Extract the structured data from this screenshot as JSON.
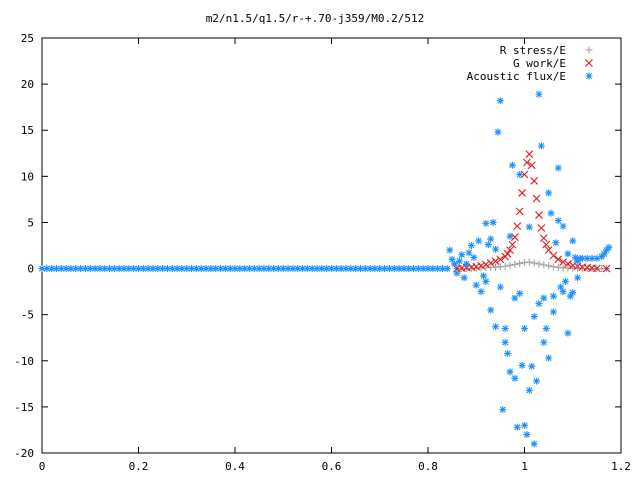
{
  "chart_data": {
    "type": "scatter",
    "title": "m2/n1.5/q1.5/r-+.70-j359/M0.2/512",
    "xlabel": "",
    "ylabel": "",
    "xlim": [
      0,
      1.2
    ],
    "ylim": [
      -20,
      25
    ],
    "xticks": [
      0,
      0.2,
      0.4,
      0.6,
      0.8,
      1,
      1.2
    ],
    "xtick_labels": [
      "0",
      "0.2",
      "0.4",
      "0.6",
      "0.8",
      "1",
      "1.2"
    ],
    "yticks": [
      -20,
      -15,
      -10,
      -5,
      0,
      5,
      10,
      15,
      20,
      25
    ],
    "ytick_labels": [
      "-20",
      "-15",
      "-10",
      "-5",
      "0",
      "5",
      "10",
      "15",
      "20",
      "25"
    ],
    "grid": false,
    "legend_position": "top-right",
    "series": [
      {
        "name": "R stress/E",
        "marker": "plus",
        "color": "#a0a0a0",
        "points": [
          [
            0.86,
            0.0
          ],
          [
            0.87,
            0.0
          ],
          [
            0.88,
            0.0
          ],
          [
            0.89,
            0.02
          ],
          [
            0.9,
            0.05
          ],
          [
            0.91,
            0.08
          ],
          [
            0.92,
            0.1
          ],
          [
            0.93,
            0.12
          ],
          [
            0.94,
            0.15
          ],
          [
            0.95,
            0.2
          ],
          [
            0.96,
            0.25
          ],
          [
            0.97,
            0.35
          ],
          [
            0.98,
            0.45
          ],
          [
            0.99,
            0.55
          ],
          [
            1.0,
            0.65
          ],
          [
            1.01,
            0.7
          ],
          [
            1.02,
            0.6
          ],
          [
            1.03,
            0.5
          ],
          [
            1.04,
            0.4
          ],
          [
            1.05,
            0.3
          ],
          [
            1.06,
            0.2
          ],
          [
            1.07,
            0.12
          ],
          [
            1.08,
            0.08
          ],
          [
            1.09,
            0.05
          ],
          [
            1.1,
            0.03
          ],
          [
            1.11,
            0.02
          ],
          [
            1.12,
            0.01
          ],
          [
            1.13,
            0.0
          ],
          [
            1.14,
            0.0
          ],
          [
            1.15,
            0.0
          ],
          [
            1.16,
            0.0
          ],
          [
            1.17,
            0.0
          ]
        ]
      },
      {
        "name": "G work/E",
        "marker": "cross",
        "color": "#e41a1c",
        "points": [
          [
            0.86,
            0.0
          ],
          [
            0.87,
            0.05
          ],
          [
            0.88,
            0.1
          ],
          [
            0.89,
            0.15
          ],
          [
            0.9,
            0.2
          ],
          [
            0.91,
            0.3
          ],
          [
            0.92,
            0.45
          ],
          [
            0.93,
            0.6
          ],
          [
            0.94,
            0.8
          ],
          [
            0.95,
            1.0
          ],
          [
            0.96,
            1.3
          ],
          [
            0.965,
            1.6
          ],
          [
            0.97,
            2.0
          ],
          [
            0.975,
            2.6
          ],
          [
            0.98,
            3.4
          ],
          [
            0.985,
            4.6
          ],
          [
            0.99,
            6.2
          ],
          [
            0.995,
            8.2
          ],
          [
            1.0,
            10.2
          ],
          [
            1.005,
            11.5
          ],
          [
            1.01,
            12.4
          ],
          [
            1.015,
            11.2
          ],
          [
            1.02,
            9.5
          ],
          [
            1.025,
            7.6
          ],
          [
            1.03,
            5.8
          ],
          [
            1.035,
            4.4
          ],
          [
            1.04,
            3.3
          ],
          [
            1.045,
            2.6
          ],
          [
            1.05,
            2.0
          ],
          [
            1.06,
            1.4
          ],
          [
            1.07,
            1.0
          ],
          [
            1.08,
            0.7
          ],
          [
            1.09,
            0.5
          ],
          [
            1.1,
            0.35
          ],
          [
            1.11,
            0.25
          ],
          [
            1.12,
            0.15
          ],
          [
            1.13,
            0.1
          ],
          [
            1.14,
            0.05
          ],
          [
            1.15,
            0.02
          ],
          [
            1.17,
            0.0
          ]
        ]
      },
      {
        "name": "Acoustic flux/E",
        "marker": "star",
        "color": "#1e90ff",
        "points": [
          [
            0.0,
            0
          ],
          [
            0.01,
            0
          ],
          [
            0.02,
            0
          ],
          [
            0.03,
            0
          ],
          [
            0.04,
            0
          ],
          [
            0.05,
            0
          ],
          [
            0.06,
            0
          ],
          [
            0.07,
            0
          ],
          [
            0.08,
            0
          ],
          [
            0.09,
            0
          ],
          [
            0.1,
            0
          ],
          [
            0.11,
            0
          ],
          [
            0.12,
            0
          ],
          [
            0.13,
            0
          ],
          [
            0.14,
            0
          ],
          [
            0.15,
            0
          ],
          [
            0.16,
            0
          ],
          [
            0.17,
            0
          ],
          [
            0.18,
            0
          ],
          [
            0.19,
            0
          ],
          [
            0.2,
            0
          ],
          [
            0.21,
            0
          ],
          [
            0.22,
            0
          ],
          [
            0.23,
            0
          ],
          [
            0.24,
            0
          ],
          [
            0.25,
            0
          ],
          [
            0.26,
            0
          ],
          [
            0.27,
            0
          ],
          [
            0.28,
            0
          ],
          [
            0.29,
            0
          ],
          [
            0.3,
            0
          ],
          [
            0.31,
            0
          ],
          [
            0.32,
            0
          ],
          [
            0.33,
            0
          ],
          [
            0.34,
            0
          ],
          [
            0.35,
            0
          ],
          [
            0.36,
            0
          ],
          [
            0.37,
            0
          ],
          [
            0.38,
            0
          ],
          [
            0.39,
            0
          ],
          [
            0.4,
            0
          ],
          [
            0.41,
            0
          ],
          [
            0.42,
            0
          ],
          [
            0.43,
            0
          ],
          [
            0.44,
            0
          ],
          [
            0.45,
            0
          ],
          [
            0.46,
            0
          ],
          [
            0.47,
            0
          ],
          [
            0.48,
            0
          ],
          [
            0.49,
            0
          ],
          [
            0.5,
            0
          ],
          [
            0.51,
            0
          ],
          [
            0.52,
            0
          ],
          [
            0.53,
            0
          ],
          [
            0.54,
            0
          ],
          [
            0.55,
            0
          ],
          [
            0.56,
            0
          ],
          [
            0.57,
            0
          ],
          [
            0.58,
            0
          ],
          [
            0.59,
            0
          ],
          [
            0.6,
            0
          ],
          [
            0.61,
            0
          ],
          [
            0.62,
            0
          ],
          [
            0.63,
            0
          ],
          [
            0.64,
            0
          ],
          [
            0.65,
            0
          ],
          [
            0.66,
            0
          ],
          [
            0.67,
            0
          ],
          [
            0.68,
            0
          ],
          [
            0.69,
            0
          ],
          [
            0.7,
            0
          ],
          [
            0.71,
            0
          ],
          [
            0.72,
            0
          ],
          [
            0.73,
            0
          ],
          [
            0.74,
            0
          ],
          [
            0.75,
            0
          ],
          [
            0.76,
            0
          ],
          [
            0.77,
            0
          ],
          [
            0.78,
            0
          ],
          [
            0.79,
            0
          ],
          [
            0.8,
            0
          ],
          [
            0.81,
            0
          ],
          [
            0.82,
            0
          ],
          [
            0.83,
            0
          ],
          [
            0.84,
            0
          ],
          [
            0.845,
            2.0
          ],
          [
            0.85,
            1.0
          ],
          [
            0.855,
            0.5
          ],
          [
            0.86,
            -0.5
          ],
          [
            0.865,
            0.8
          ],
          [
            0.87,
            1.5
          ],
          [
            0.875,
            -1.0
          ],
          [
            0.88,
            0.5
          ],
          [
            0.885,
            1.7
          ],
          [
            0.89,
            2.5
          ],
          [
            0.895,
            1.2
          ],
          [
            0.9,
            -1.8
          ],
          [
            0.905,
            3.0
          ],
          [
            0.91,
            -2.5
          ],
          [
            0.915,
            -0.8
          ],
          [
            0.92,
            4.9
          ],
          [
            0.925,
            2.6
          ],
          [
            0.93,
            -4.5
          ],
          [
            0.935,
            5.0
          ],
          [
            0.94,
            -6.3
          ],
          [
            0.945,
            14.8
          ],
          [
            0.95,
            18.2
          ],
          [
            0.955,
            -15.3
          ],
          [
            0.96,
            -6.5
          ],
          [
            0.965,
            -9.2
          ],
          [
            0.97,
            -11.2
          ],
          [
            0.975,
            11.2
          ],
          [
            0.98,
            -11.9
          ],
          [
            0.985,
            -17.2
          ],
          [
            0.99,
            10.2
          ],
          [
            0.995,
            -10.5
          ],
          [
            1.0,
            -17.0
          ],
          [
            1.005,
            -18.0
          ],
          [
            1.01,
            -13.2
          ],
          [
            1.015,
            -10.6
          ],
          [
            1.02,
            -19.0
          ],
          [
            1.025,
            -12.2
          ],
          [
            1.03,
            18.9
          ],
          [
            1.035,
            13.3
          ],
          [
            1.04,
            -8.0
          ],
          [
            1.045,
            -6.5
          ],
          [
            1.05,
            -9.7
          ],
          [
            1.055,
            6.0
          ],
          [
            1.06,
            -3.0
          ],
          [
            1.065,
            2.8
          ],
          [
            1.07,
            10.9
          ],
          [
            1.075,
            -2.0
          ],
          [
            1.08,
            4.6
          ],
          [
            1.085,
            -1.4
          ],
          [
            1.09,
            1.6
          ],
          [
            1.095,
            -3.0
          ],
          [
            1.1,
            3.0
          ],
          [
            1.105,
            1.2
          ],
          [
            1.11,
            0.8
          ],
          [
            1.115,
            1.1
          ],
          [
            1.12,
            1.1
          ],
          [
            1.13,
            1.1
          ],
          [
            1.14,
            1.1
          ],
          [
            1.15,
            1.1
          ],
          [
            1.16,
            1.3
          ],
          [
            1.165,
            1.6
          ],
          [
            1.17,
            2.0
          ],
          [
            1.175,
            2.3
          ],
          [
            0.96,
            -8.0
          ],
          [
            0.97,
            3.5
          ],
          [
            0.98,
            -3.2
          ],
          [
            1.0,
            -6.5
          ],
          [
            1.02,
            -5.2
          ],
          [
            1.04,
            -3.2
          ],
          [
            1.06,
            -4.7
          ],
          [
            0.99,
            -2.7
          ],
          [
            1.01,
            4.5
          ],
          [
            1.03,
            -3.8
          ],
          [
            0.95,
            -2.0
          ],
          [
            1.05,
            8.2
          ],
          [
            1.08,
            -2.5
          ],
          [
            0.92,
            -1.4
          ],
          [
            0.94,
            2.1
          ],
          [
            1.1,
            -2.6
          ],
          [
            1.07,
            5.2
          ],
          [
            1.09,
            -7.0
          ],
          [
            0.93,
            3.2
          ],
          [
            1.11,
            -1.0
          ]
        ]
      }
    ]
  }
}
